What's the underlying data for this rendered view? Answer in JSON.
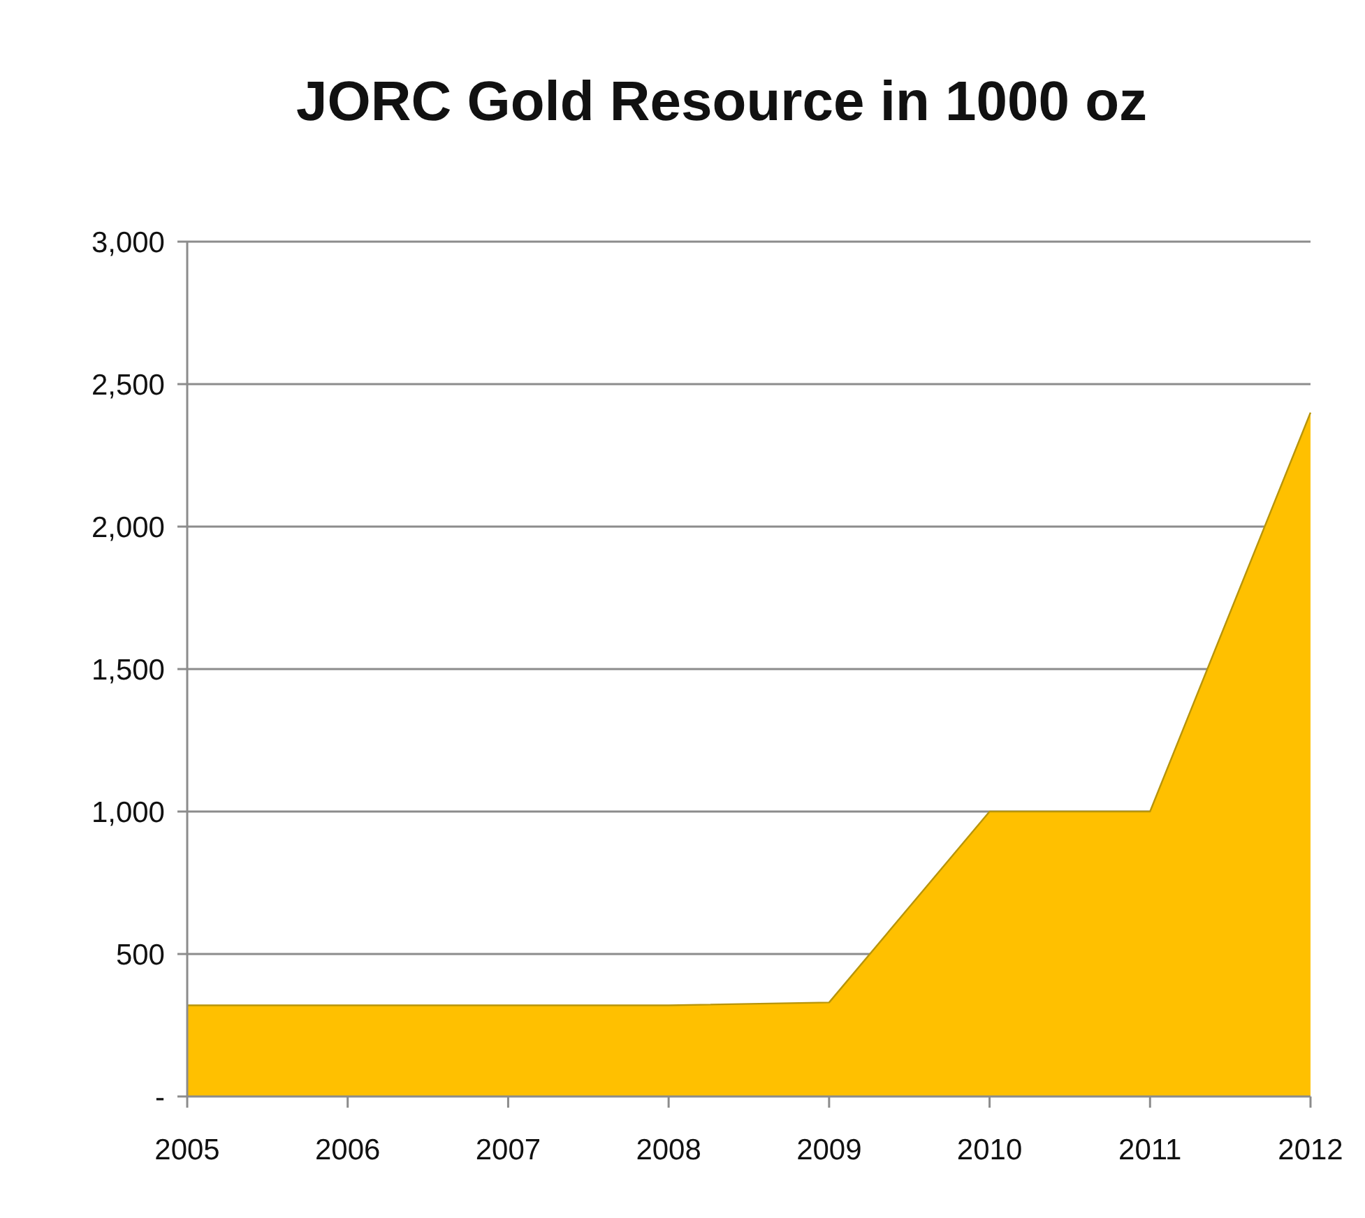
{
  "chart_data": {
    "type": "area",
    "title": "JORC Gold Resource in 1000 oz",
    "categories": [
      "2005",
      "2006",
      "2007",
      "2008",
      "2009",
      "2010",
      "2011",
      "2012"
    ],
    "values": [
      320,
      320,
      320,
      320,
      330,
      1000,
      1000,
      2400
    ],
    "color": "#ffc000",
    "ylim": [
      0,
      3000
    ],
    "yticks": [
      {
        "value": 0,
        "label": "-"
      },
      500,
      {
        "value": 1000,
        "label": "1,000"
      },
      {
        "value": 1500,
        "label": "1,500"
      },
      {
        "value": 2000,
        "label": "2,000"
      },
      {
        "value": 2500,
        "label": "2,500"
      },
      {
        "value": 3000,
        "label": "3,000"
      }
    ],
    "grid": "y"
  }
}
